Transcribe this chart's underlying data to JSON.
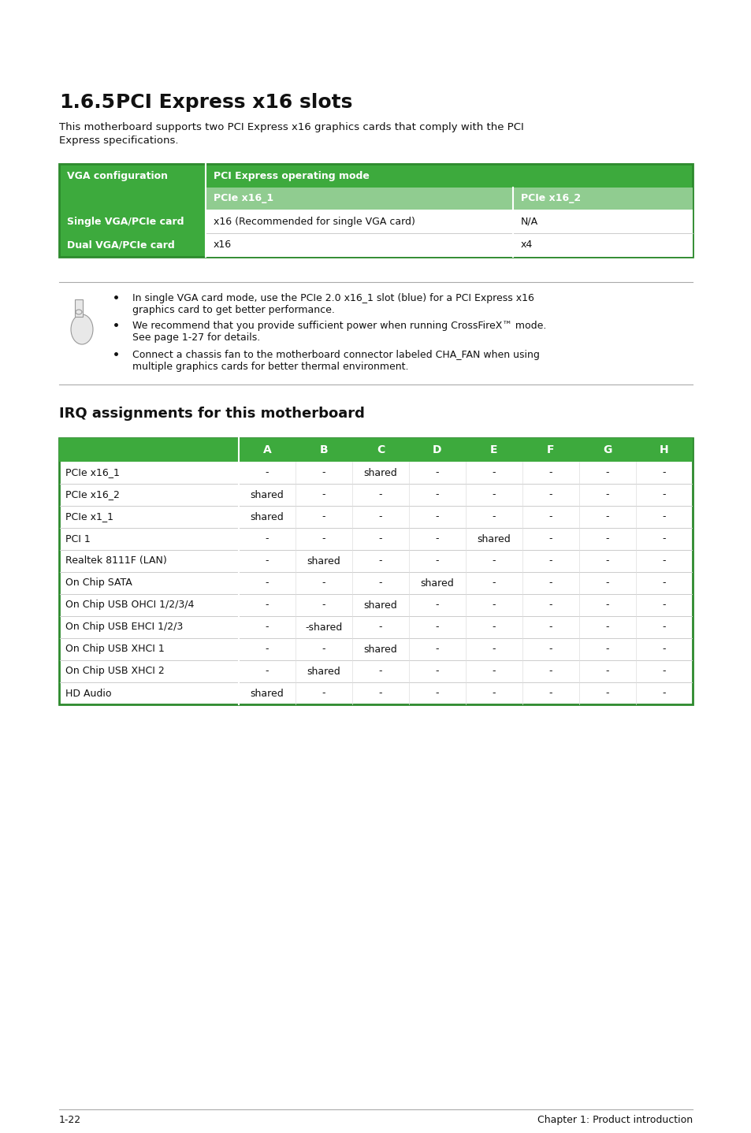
{
  "title_num": "1.6.5",
  "title_text": "PCI Express x16 slots",
  "intro_text_line1": "This motherboard supports two PCI Express x16 graphics cards that comply with the PCI",
  "intro_text_line2": "Express specifications.",
  "table1_header_row1_col1": "VGA configuration",
  "table1_header_row1_col2": "PCI Express operating mode",
  "table1_subheader_col1": "PCIe x16_1",
  "table1_subheader_col2": "PCIe x16_2",
  "table1_rows": [
    [
      "Single VGA/PCIe card",
      "x16 (Recommended for single VGA card)",
      "N/A"
    ],
    [
      "Dual VGA/PCIe card",
      "x16",
      "x4"
    ]
  ],
  "note_bullets": [
    [
      "In single VGA card mode, use the PCIe 2.0 x16_1 slot (blue) for a PCI Express x16",
      "graphics card to get better performance."
    ],
    [
      "We recommend that you provide sufficient power when running CrossFireX™ mode.",
      "See page 1-27 for details."
    ],
    [
      "Connect a chassis fan to the motherboard connector labeled CHA_FAN when using",
      "multiple graphics cards for better thermal environment."
    ]
  ],
  "irq_title": "IRQ assignments for this motherboard",
  "irq_col_headers": [
    "A",
    "B",
    "C",
    "D",
    "E",
    "F",
    "G",
    "H"
  ],
  "irq_rows": [
    [
      "PCIe x16_1",
      "-",
      "-",
      "shared",
      "-",
      "-",
      "-",
      "-",
      "-"
    ],
    [
      "PCIe x16_2",
      "shared",
      "-",
      "-",
      "-",
      "-",
      "-",
      "-",
      "-"
    ],
    [
      "PCIe x1_1",
      "shared",
      "-",
      "-",
      "-",
      "-",
      "-",
      "-",
      "-"
    ],
    [
      "PCI 1",
      "-",
      "-",
      "-",
      "-",
      "shared",
      "-",
      "-",
      "-"
    ],
    [
      "Realtek 8111F (LAN)",
      "-",
      "shared",
      "-",
      "-",
      "-",
      "-",
      "-",
      "-"
    ],
    [
      "On Chip SATA",
      "-",
      "-",
      "-",
      "shared",
      "-",
      "-",
      "-",
      "-"
    ],
    [
      "On Chip USB OHCI 1/2/3/4",
      "-",
      "-",
      "shared",
      "-",
      "-",
      "-",
      "-",
      "-"
    ],
    [
      "On Chip USB EHCI 1/2/3",
      "-",
      "-shared",
      "-",
      "-",
      "-",
      "-",
      "-",
      "-"
    ],
    [
      "On Chip USB XHCI 1",
      "-",
      "-",
      "shared",
      "-",
      "-",
      "-",
      "-",
      "-"
    ],
    [
      "On Chip USB XHCI 2",
      "-",
      "shared",
      "-",
      "-",
      "-",
      "-",
      "-",
      "-"
    ],
    [
      "HD Audio",
      "shared",
      "-",
      "-",
      "-",
      "-",
      "-",
      "-",
      "-"
    ]
  ],
  "footer_left": "1-22",
  "footer_right": "Chapter 1: Product introduction",
  "green_dark": "#3daa3d",
  "green_light": "#90cc90",
  "green_border": "#2d8a2d",
  "white": "#ffffff",
  "black": "#111111",
  "gray_line": "#bbbbbb",
  "page_bg": "#ffffff"
}
